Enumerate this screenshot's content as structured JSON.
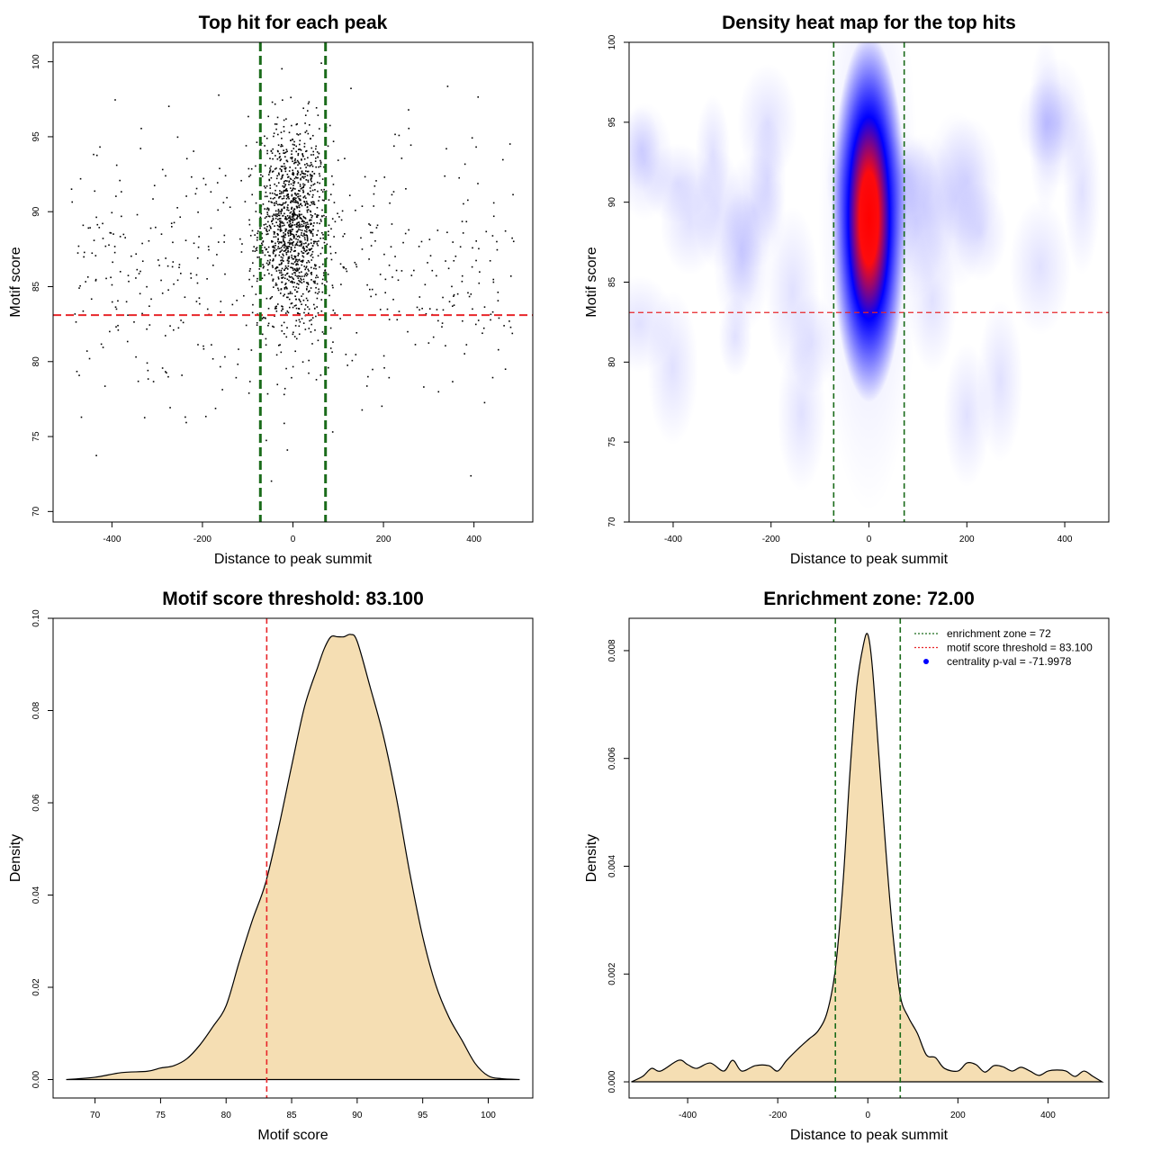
{
  "colors": {
    "threshold_line": "#e8262a",
    "zone_line": "#1a6b1a",
    "density_fill": "#f5deb3",
    "density_line": "#000000",
    "heat_low": "#ffffff",
    "heat_mid": "#0000ff",
    "heat_high": "#ff0000",
    "points": "#000000",
    "legend_dot": "#0000ff"
  },
  "chart_data": [
    {
      "type": "scatter",
      "title": "Top hit for each peak",
      "xlabel": "Distance to peak summit",
      "ylabel": "Motif score",
      "xlim": [
        -530,
        530
      ],
      "ylim": [
        69.3,
        101.3
      ],
      "xticks": [
        -400,
        -200,
        0,
        200,
        400
      ],
      "yticks": [
        70,
        75,
        80,
        85,
        90,
        95,
        100
      ],
      "hlines": [
        83.1
      ],
      "vlines": [
        -72,
        72
      ],
      "point_cloud": {
        "n_points": 1800,
        "center_fraction": 0.72,
        "center_x_sd": 38,
        "center_y_mean": 89,
        "center_y_sd": 3.4,
        "background_x_range": [
          -490,
          490
        ],
        "background_y_mean": 86,
        "background_y_sd": 4.6
      },
      "grid": false,
      "legend": "none"
    },
    {
      "type": "heatmap",
      "title": "Density heat map for the top hits",
      "xlabel": "Distance to peak summit",
      "ylabel": "Motif score",
      "xlim": [
        -490,
        490
      ],
      "ylim": [
        70,
        100
      ],
      "xticks": [
        -400,
        -200,
        0,
        200,
        400
      ],
      "yticks": [
        70,
        75,
        80,
        85,
        90,
        95,
        100
      ],
      "hlines": [
        83.1
      ],
      "vlines": [
        -72,
        72
      ],
      "density_peak": {
        "x": 0,
        "y": 89,
        "x_sd": 32,
        "y_sd": 3.2
      },
      "color_scale": [
        "white",
        "blue",
        "red"
      ],
      "grid": false,
      "legend": "none"
    },
    {
      "type": "area",
      "title": "Motif score threshold: 83.100",
      "xlabel": "Motif score",
      "ylabel": "Density",
      "xlim": [
        66.8,
        103.4
      ],
      "ylim": [
        -0.004,
        0.1
      ],
      "xticks": [
        70,
        75,
        80,
        85,
        90,
        95,
        100
      ],
      "yticks": [
        0.0,
        0.02,
        0.04,
        0.06,
        0.08,
        0.1
      ],
      "ytick_labels": [
        "0.00",
        "0.02",
        "0.04",
        "0.06",
        "0.08",
        "0.10"
      ],
      "vlines": [
        83.1
      ],
      "x": [
        67.8,
        70,
        72,
        74,
        75,
        76,
        77,
        78,
        79,
        80,
        81,
        82,
        83,
        84,
        85,
        86,
        87,
        87.5,
        88,
        88.5,
        89,
        89.5,
        90,
        91,
        92,
        93,
        94,
        95,
        96,
        97,
        98,
        99,
        100,
        101,
        102.4
      ],
      "y": [
        0.0,
        0.0005,
        0.0015,
        0.0018,
        0.0025,
        0.003,
        0.0045,
        0.0075,
        0.0115,
        0.016,
        0.0255,
        0.0345,
        0.0425,
        0.0545,
        0.068,
        0.081,
        0.0895,
        0.0935,
        0.096,
        0.096,
        0.096,
        0.0965,
        0.095,
        0.085,
        0.0745,
        0.061,
        0.045,
        0.031,
        0.0205,
        0.0135,
        0.0085,
        0.0035,
        0.0008,
        0.0002,
        0.0
      ],
      "grid": false,
      "legend": "none"
    },
    {
      "type": "area",
      "title": "Enrichment zone: 72.00",
      "xlabel": "Distance to peak summit",
      "ylabel": "Density",
      "xlim": [
        -530,
        535
      ],
      "ylim": [
        -0.0003,
        0.0086
      ],
      "xticks": [
        -400,
        -200,
        0,
        200,
        400
      ],
      "yticks": [
        0.0,
        0.002,
        0.004,
        0.006,
        0.008
      ],
      "ytick_labels": [
        "0.000",
        "0.002",
        "0.004",
        "0.006",
        "0.008"
      ],
      "vlines": [
        -72,
        72
      ],
      "x": [
        -525,
        -500,
        -480,
        -460,
        -420,
        -400,
        -380,
        -350,
        -320,
        -300,
        -280,
        -250,
        -220,
        -200,
        -180,
        -150,
        -130,
        -110,
        -90,
        -72,
        -55,
        -40,
        -25,
        -10,
        0,
        10,
        25,
        40,
        55,
        72,
        90,
        110,
        130,
        150,
        170,
        200,
        220,
        240,
        260,
        280,
        300,
        320,
        340,
        360,
        380,
        400,
        420,
        440,
        460,
        480,
        500,
        520
      ],
      "y": [
        0.0,
        0.0001,
        0.00025,
        0.0002,
        0.0004,
        0.00032,
        0.00025,
        0.00035,
        0.0002,
        0.0004,
        0.0002,
        0.0003,
        0.0003,
        0.0002,
        0.0004,
        0.00065,
        0.0008,
        0.00095,
        0.0013,
        0.0021,
        0.0037,
        0.0057,
        0.0073,
        0.0081,
        0.0083,
        0.0077,
        0.006,
        0.0043,
        0.0028,
        0.0016,
        0.0012,
        0.0009,
        0.0005,
        0.00045,
        0.00025,
        0.0002,
        0.00035,
        0.00032,
        0.00018,
        0.0003,
        0.00028,
        0.0002,
        0.00027,
        0.0002,
        0.00012,
        0.0002,
        0.00022,
        0.0002,
        0.0001,
        0.0002,
        0.0001,
        0.0
      ],
      "legend": {
        "placement": "top-right",
        "entries": [
          {
            "label": "enrichment zone = 72",
            "symbol": "dotted-line",
            "color": "#1a6b1a"
          },
          {
            "label": "motif score threshold = 83.100",
            "symbol": "dotted-line",
            "color": "#e8262a"
          },
          {
            "label": "centrality p-val = -71.9978",
            "symbol": "dot",
            "color": "#0000ff"
          }
        ]
      },
      "grid": false
    }
  ]
}
